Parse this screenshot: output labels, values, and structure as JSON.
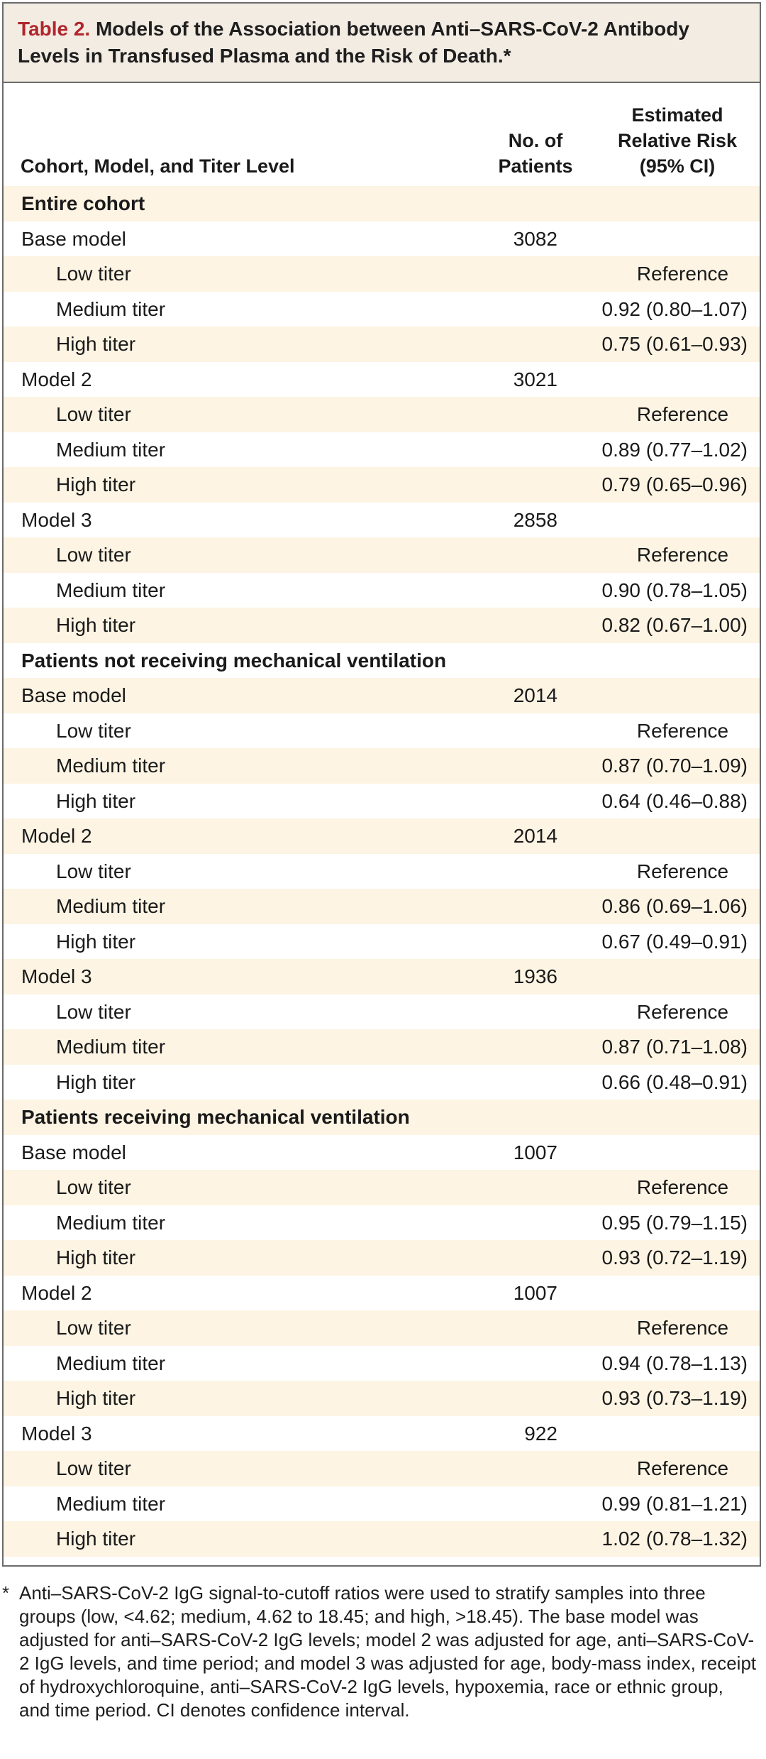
{
  "title": {
    "label": "Table 2.",
    "text": "Models of the Association between Anti–SARS-CoV-2 Antibody Levels in Transfused Plasma and the Risk of Death.*"
  },
  "headers": {
    "cohort": "Cohort, Model, and Titer Level",
    "patients_line1": "No. of",
    "patients_line2": "Patients",
    "risk_line1": "Estimated",
    "risk_line2": "Relative Risk",
    "risk_line3": "(95% CI)"
  },
  "rows": [
    {
      "label": "Entire cohort",
      "type": "section",
      "n": "",
      "risk": ""
    },
    {
      "label": "Base model",
      "type": "model",
      "n": "3082",
      "risk": ""
    },
    {
      "label": "Low titer",
      "type": "titer",
      "n": "",
      "risk": "Reference"
    },
    {
      "label": "Medium titer",
      "type": "titer",
      "n": "",
      "risk": "0.92 (0.80–1.07)"
    },
    {
      "label": "High titer",
      "type": "titer",
      "n": "",
      "risk": "0.75 (0.61–0.93)"
    },
    {
      "label": "Model 2",
      "type": "model",
      "n": "3021",
      "risk": ""
    },
    {
      "label": "Low titer",
      "type": "titer",
      "n": "",
      "risk": "Reference"
    },
    {
      "label": "Medium titer",
      "type": "titer",
      "n": "",
      "risk": "0.89 (0.77–1.02)"
    },
    {
      "label": "High titer",
      "type": "titer",
      "n": "",
      "risk": "0.79 (0.65–0.96)"
    },
    {
      "label": "Model 3",
      "type": "model",
      "n": "2858",
      "risk": ""
    },
    {
      "label": "Low titer",
      "type": "titer",
      "n": "",
      "risk": "Reference"
    },
    {
      "label": "Medium titer",
      "type": "titer",
      "n": "",
      "risk": "0.90 (0.78–1.05)"
    },
    {
      "label": "High titer",
      "type": "titer",
      "n": "",
      "risk": "0.82 (0.67–1.00)"
    },
    {
      "label": "Patients not receiving mechanical ventilation",
      "type": "section",
      "n": "",
      "risk": ""
    },
    {
      "label": "Base model",
      "type": "model",
      "n": "2014",
      "risk": ""
    },
    {
      "label": "Low titer",
      "type": "titer",
      "n": "",
      "risk": "Reference"
    },
    {
      "label": "Medium titer",
      "type": "titer",
      "n": "",
      "risk": "0.87 (0.70–1.09)"
    },
    {
      "label": "High titer",
      "type": "titer",
      "n": "",
      "risk": "0.64 (0.46–0.88)"
    },
    {
      "label": "Model 2",
      "type": "model",
      "n": "2014",
      "risk": ""
    },
    {
      "label": "Low titer",
      "type": "titer",
      "n": "",
      "risk": "Reference"
    },
    {
      "label": "Medium titer",
      "type": "titer",
      "n": "",
      "risk": "0.86 (0.69–1.06)"
    },
    {
      "label": "High titer",
      "type": "titer",
      "n": "",
      "risk": "0.67 (0.49–0.91)"
    },
    {
      "label": "Model 3",
      "type": "model",
      "n": "1936",
      "risk": ""
    },
    {
      "label": "Low titer",
      "type": "titer",
      "n": "",
      "risk": "Reference"
    },
    {
      "label": "Medium titer",
      "type": "titer",
      "n": "",
      "risk": "0.87 (0.71–1.08)"
    },
    {
      "label": "High titer",
      "type": "titer",
      "n": "",
      "risk": "0.66 (0.48–0.91)"
    },
    {
      "label": "Patients receiving mechanical ventilation",
      "type": "section",
      "n": "",
      "risk": ""
    },
    {
      "label": "Base model",
      "type": "model",
      "n": "1007",
      "risk": ""
    },
    {
      "label": "Low titer",
      "type": "titer",
      "n": "",
      "risk": "Reference"
    },
    {
      "label": "Medium titer",
      "type": "titer",
      "n": "",
      "risk": "0.95 (0.79–1.15)"
    },
    {
      "label": "High titer",
      "type": "titer",
      "n": "",
      "risk": "0.93 (0.72–1.19)"
    },
    {
      "label": "Model 2",
      "type": "model",
      "n": "1007",
      "risk": ""
    },
    {
      "label": "Low titer",
      "type": "titer",
      "n": "",
      "risk": "Reference"
    },
    {
      "label": "Medium titer",
      "type": "titer",
      "n": "",
      "risk": "0.94 (0.78–1.13)"
    },
    {
      "label": "High titer",
      "type": "titer",
      "n": "",
      "risk": "0.93 (0.73–1.19)"
    },
    {
      "label": "Model 3",
      "type": "model",
      "n": "922",
      "risk": ""
    },
    {
      "label": "Low titer",
      "type": "titer",
      "n": "",
      "risk": "Reference"
    },
    {
      "label": "Medium titer",
      "type": "titer",
      "n": "",
      "risk": "0.99 (0.81–1.21)"
    },
    {
      "label": "High titer",
      "type": "titer",
      "n": "",
      "risk": "1.02 (0.78–1.32)"
    }
  ],
  "footnote": {
    "marker": "*",
    "text": "Anti–SARS-CoV-2 IgG signal-to-cutoff ratios were used to stratify samples into three groups (low, <4.62; medium, 4.62 to 18.45; and high, >18.45). The base model was adjusted for anti–SARS-CoV-2 IgG levels; model 2 was adjusted for age, anti–SARS-CoV-2 IgG levels, and time period; and model 3 was adjusted for age, body-mass index, receipt of hydroxychloroquine, anti–SARS-CoV-2 IgG levels, hypoxemia, race or ethnic group, and time period. CI denotes confidence interval."
  },
  "colors": {
    "title_label": "#b0262c",
    "title_band": "#f3ece3",
    "row_shade": "#fdf4e3",
    "border": "#6b6b6b"
  }
}
